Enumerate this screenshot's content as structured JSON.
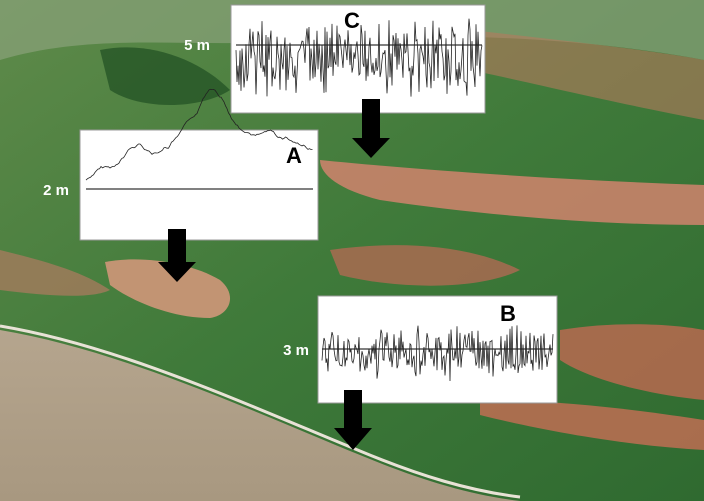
{
  "panels": [
    {
      "label": "C",
      "scale": "5 m"
    },
    {
      "label": "A",
      "scale": "2 m"
    },
    {
      "label": "B",
      "scale": "3 m"
    }
  ]
}
